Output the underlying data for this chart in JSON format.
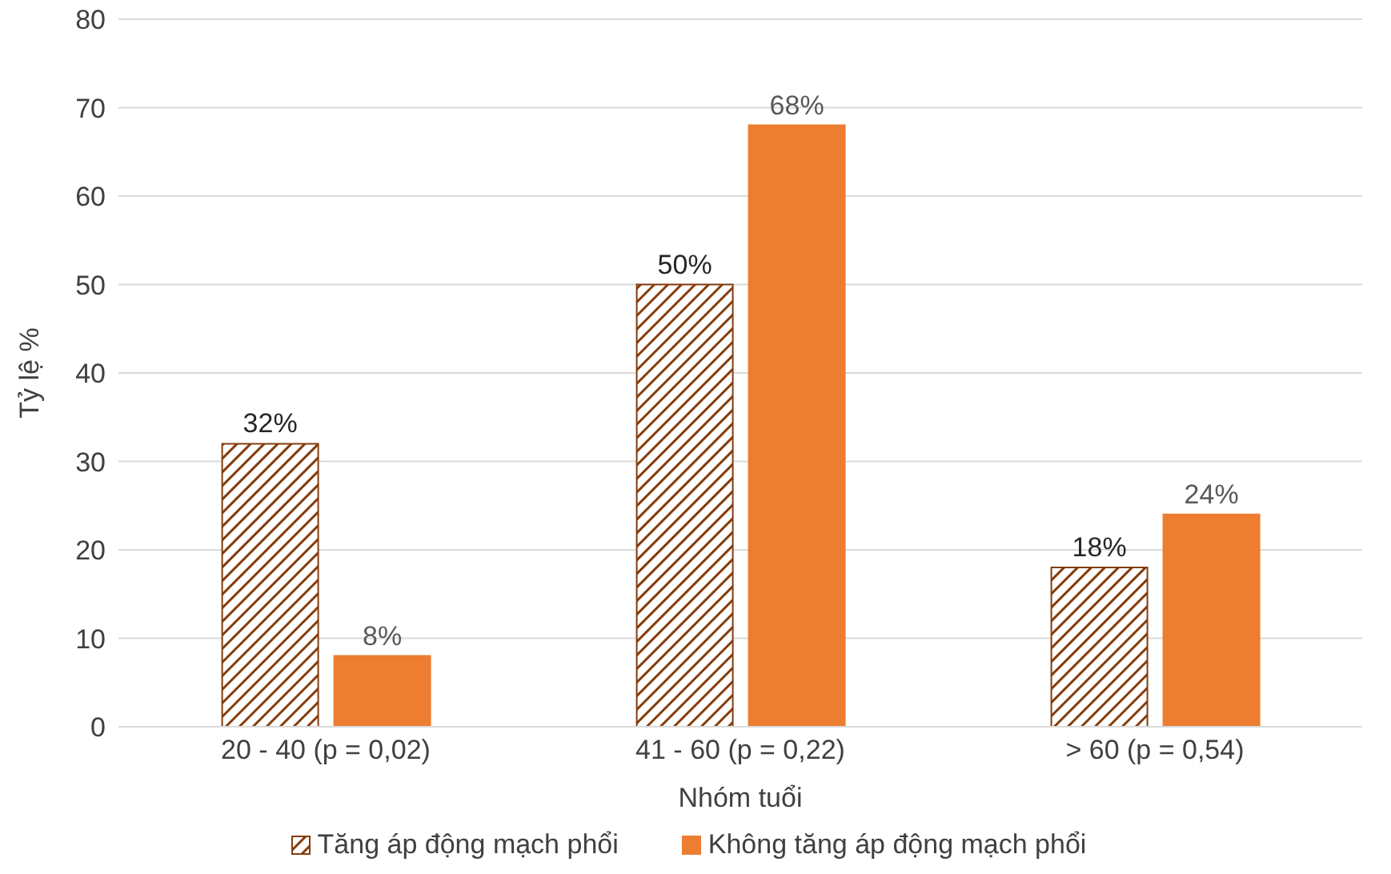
{
  "chart_data": {
    "type": "bar",
    "xlabel": "Nhóm tuổi",
    "ylabel": "Tỷ lệ %",
    "categories": [
      "20 - 40 (p = 0,02)",
      "41 - 60 (p = 0,22)",
      "> 60 (p = 0,54)"
    ],
    "series": [
      {
        "name": "Tăng áp động mạch phổi",
        "color": "#843c0c",
        "values": [
          32,
          50,
          18
        ],
        "value_labels": [
          "32%",
          "50%",
          "18%"
        ]
      },
      {
        "name": "Không tăng áp động mạch phổi",
        "color": "#ed7d31",
        "values": [
          8,
          68,
          24
        ],
        "value_labels": [
          "8%",
          "68%",
          "24%"
        ]
      }
    ],
    "ylim": [
      0,
      80
    ],
    "yticks": [
      0,
      10,
      20,
      30,
      40,
      50,
      60,
      70,
      80
    ],
    "grid": "y",
    "legend": "bottom"
  }
}
